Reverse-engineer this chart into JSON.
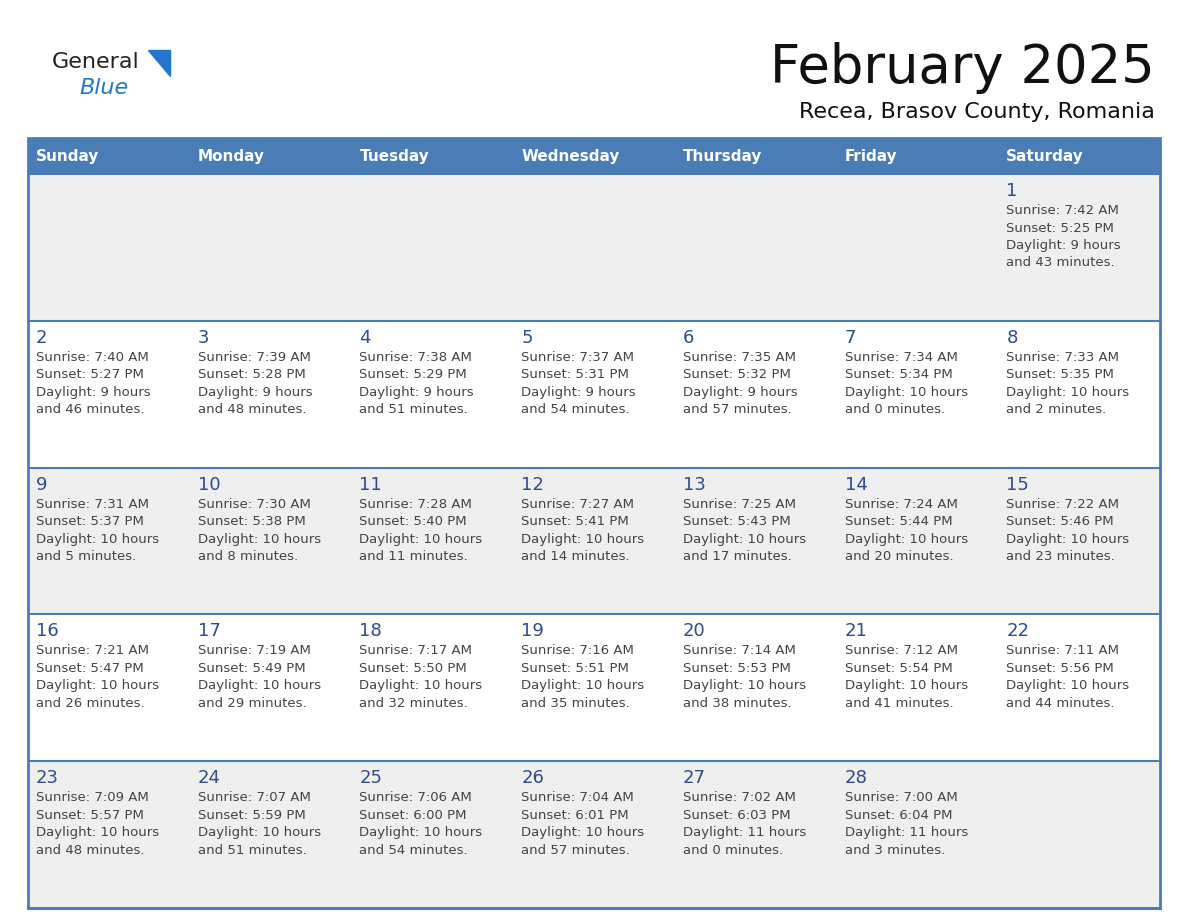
{
  "title": "February 2025",
  "subtitle": "Recea, Brasov County, Romania",
  "days_of_week": [
    "Sunday",
    "Monday",
    "Tuesday",
    "Wednesday",
    "Thursday",
    "Friday",
    "Saturday"
  ],
  "header_bg": "#4a7db5",
  "header_text_color": "#ffffff",
  "row_bg_gray": "#efefef",
  "row_bg_white": "#ffffff",
  "day_number_color": "#2e4d8a",
  "info_text_color": "#444444",
  "border_color": "#4a7db5",
  "title_color": "#111111",
  "subtitle_color": "#111111",
  "logo_general_color": "#222222",
  "logo_blue_color": "#2277cc",
  "calendar_data": [
    [
      null,
      null,
      null,
      null,
      null,
      null,
      {
        "day": 1,
        "sunrise": "7:42 AM",
        "sunset": "5:25 PM",
        "daylight": "9 hours and 43 minutes."
      }
    ],
    [
      {
        "day": 2,
        "sunrise": "7:40 AM",
        "sunset": "5:27 PM",
        "daylight": "9 hours and 46 minutes."
      },
      {
        "day": 3,
        "sunrise": "7:39 AM",
        "sunset": "5:28 PM",
        "daylight": "9 hours and 48 minutes."
      },
      {
        "day": 4,
        "sunrise": "7:38 AM",
        "sunset": "5:29 PM",
        "daylight": "9 hours and 51 minutes."
      },
      {
        "day": 5,
        "sunrise": "7:37 AM",
        "sunset": "5:31 PM",
        "daylight": "9 hours and 54 minutes."
      },
      {
        "day": 6,
        "sunrise": "7:35 AM",
        "sunset": "5:32 PM",
        "daylight": "9 hours and 57 minutes."
      },
      {
        "day": 7,
        "sunrise": "7:34 AM",
        "sunset": "5:34 PM",
        "daylight": "10 hours and 0 minutes."
      },
      {
        "day": 8,
        "sunrise": "7:33 AM",
        "sunset": "5:35 PM",
        "daylight": "10 hours and 2 minutes."
      }
    ],
    [
      {
        "day": 9,
        "sunrise": "7:31 AM",
        "sunset": "5:37 PM",
        "daylight": "10 hours and 5 minutes."
      },
      {
        "day": 10,
        "sunrise": "7:30 AM",
        "sunset": "5:38 PM",
        "daylight": "10 hours and 8 minutes."
      },
      {
        "day": 11,
        "sunrise": "7:28 AM",
        "sunset": "5:40 PM",
        "daylight": "10 hours and 11 minutes."
      },
      {
        "day": 12,
        "sunrise": "7:27 AM",
        "sunset": "5:41 PM",
        "daylight": "10 hours and 14 minutes."
      },
      {
        "day": 13,
        "sunrise": "7:25 AM",
        "sunset": "5:43 PM",
        "daylight": "10 hours and 17 minutes."
      },
      {
        "day": 14,
        "sunrise": "7:24 AM",
        "sunset": "5:44 PM",
        "daylight": "10 hours and 20 minutes."
      },
      {
        "day": 15,
        "sunrise": "7:22 AM",
        "sunset": "5:46 PM",
        "daylight": "10 hours and 23 minutes."
      }
    ],
    [
      {
        "day": 16,
        "sunrise": "7:21 AM",
        "sunset": "5:47 PM",
        "daylight": "10 hours and 26 minutes."
      },
      {
        "day": 17,
        "sunrise": "7:19 AM",
        "sunset": "5:49 PM",
        "daylight": "10 hours and 29 minutes."
      },
      {
        "day": 18,
        "sunrise": "7:17 AM",
        "sunset": "5:50 PM",
        "daylight": "10 hours and 32 minutes."
      },
      {
        "day": 19,
        "sunrise": "7:16 AM",
        "sunset": "5:51 PM",
        "daylight": "10 hours and 35 minutes."
      },
      {
        "day": 20,
        "sunrise": "7:14 AM",
        "sunset": "5:53 PM",
        "daylight": "10 hours and 38 minutes."
      },
      {
        "day": 21,
        "sunrise": "7:12 AM",
        "sunset": "5:54 PM",
        "daylight": "10 hours and 41 minutes."
      },
      {
        "day": 22,
        "sunrise": "7:11 AM",
        "sunset": "5:56 PM",
        "daylight": "10 hours and 44 minutes."
      }
    ],
    [
      {
        "day": 23,
        "sunrise": "7:09 AM",
        "sunset": "5:57 PM",
        "daylight": "10 hours and 48 minutes."
      },
      {
        "day": 24,
        "sunrise": "7:07 AM",
        "sunset": "5:59 PM",
        "daylight": "10 hours and 51 minutes."
      },
      {
        "day": 25,
        "sunrise": "7:06 AM",
        "sunset": "6:00 PM",
        "daylight": "10 hours and 54 minutes."
      },
      {
        "day": 26,
        "sunrise": "7:04 AM",
        "sunset": "6:01 PM",
        "daylight": "10 hours and 57 minutes."
      },
      {
        "day": 27,
        "sunrise": "7:02 AM",
        "sunset": "6:03 PM",
        "daylight": "11 hours and 0 minutes."
      },
      {
        "day": 28,
        "sunrise": "7:00 AM",
        "sunset": "6:04 PM",
        "daylight": "11 hours and 3 minutes."
      },
      null
    ]
  ]
}
